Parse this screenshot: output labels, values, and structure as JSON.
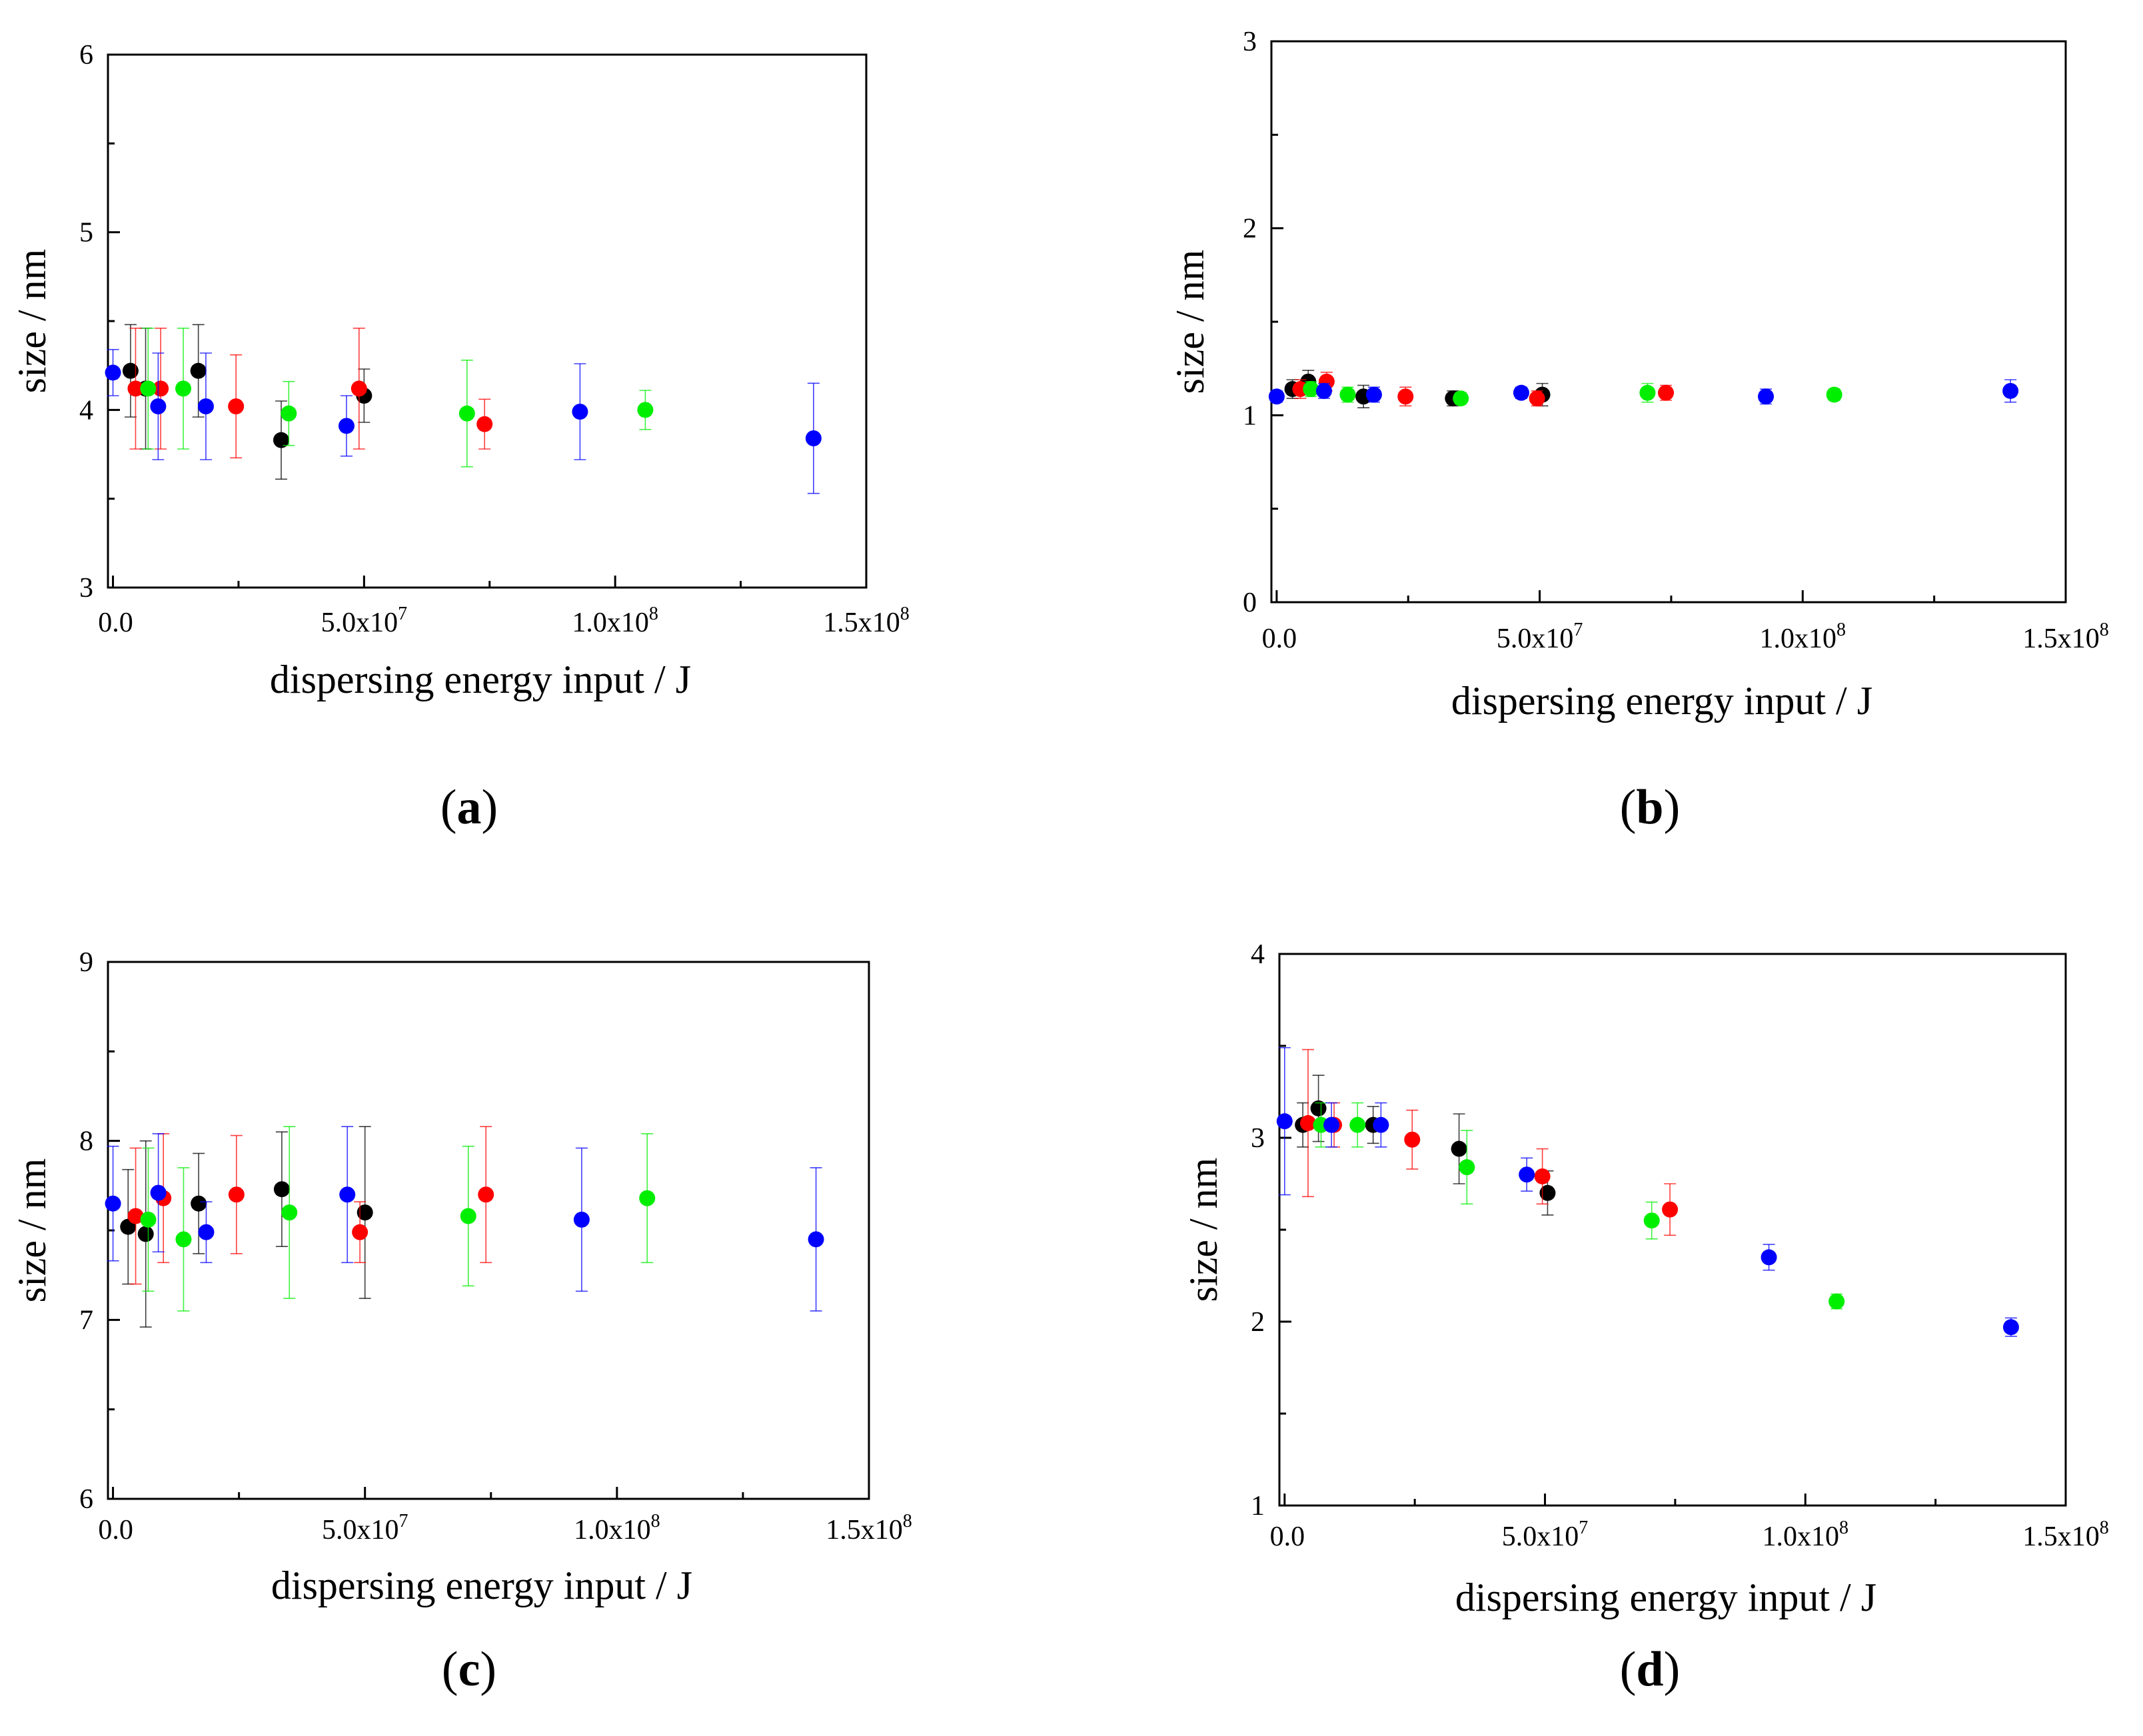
{
  "figure": {
    "panels": [
      "a",
      "b",
      "c",
      "d"
    ]
  },
  "chart_data": [
    {
      "id": "a",
      "type": "scatter",
      "panel_label": "a",
      "xlabel": "dispersing energy input / J",
      "ylabel": "size / nm",
      "xlim": [
        -1000000,
        150000000
      ],
      "ylim": [
        3,
        6
      ],
      "xticks": [
        {
          "value": 0,
          "text": "0.0",
          "sup": ""
        },
        {
          "value": 50000000,
          "text": "5.0x10",
          "sup": "7"
        },
        {
          "value": 100000000,
          "text": "1.0x10",
          "sup": "8"
        },
        {
          "value": 150000000,
          "text": "1.5x10",
          "sup": "8"
        }
      ],
      "yticks": [
        "3",
        "4",
        "5",
        "6"
      ],
      "grid": false,
      "series": [
        {
          "name": "black",
          "color": "#000000",
          "points": [
            {
              "x": 3500000,
              "y": 4.22,
              "err": 0.26
            },
            {
              "x": 17000000,
              "y": 4.22,
              "err": 0.26
            },
            {
              "x": 33500000,
              "y": 3.83,
              "err": 0.22
            },
            {
              "x": 50000000,
              "y": 4.08,
              "err": 0.15
            },
            {
              "x": 6500000,
              "y": 4.12,
              "err": 0.34
            }
          ]
        },
        {
          "name": "red",
          "color": "#ff0000",
          "points": [
            {
              "x": 4500000,
              "y": 4.12,
              "err": 0.34
            },
            {
              "x": 9500000,
              "y": 4.12,
              "err": 0.34
            },
            {
              "x": 24500000,
              "y": 4.02,
              "err": 0.29
            },
            {
              "x": 49000000,
              "y": 4.12,
              "err": 0.34
            },
            {
              "x": 74000000,
              "y": 3.92,
              "err": 0.14
            }
          ]
        },
        {
          "name": "green",
          "color": "#00ee00",
          "points": [
            {
              "x": 7000000,
              "y": 4.12,
              "err": 0.34
            },
            {
              "x": 14000000,
              "y": 4.12,
              "err": 0.34
            },
            {
              "x": 35000000,
              "y": 3.98,
              "err": 0.18
            },
            {
              "x": 70500000,
              "y": 3.98,
              "err": 0.3
            },
            {
              "x": 106000000,
              "y": 4.0,
              "err": 0.11
            }
          ]
        },
        {
          "name": "blue",
          "color": "#0000ff",
          "points": [
            {
              "x": 0,
              "y": 4.21,
              "err": 0.13
            },
            {
              "x": 9000000,
              "y": 4.02,
              "err": 0.3
            },
            {
              "x": 18500000,
              "y": 4.02,
              "err": 0.3
            },
            {
              "x": 46500000,
              "y": 3.91,
              "err": 0.17
            },
            {
              "x": 93000000,
              "y": 3.99,
              "err": 0.27
            },
            {
              "x": 139500000,
              "y": 3.84,
              "err": 0.31
            }
          ]
        }
      ]
    },
    {
      "id": "b",
      "type": "scatter",
      "panel_label": "b",
      "xlabel": "dispersing energy input / J",
      "ylabel": "size / nm",
      "xlim": [
        -1000000,
        150000000
      ],
      "ylim": [
        0,
        3
      ],
      "xticks": [
        {
          "value": 0,
          "text": "0.0",
          "sup": ""
        },
        {
          "value": 50000000,
          "text": "5.0x10",
          "sup": "7"
        },
        {
          "value": 100000000,
          "text": "1.0x10",
          "sup": "8"
        },
        {
          "value": 150000000,
          "text": "1.5x10",
          "sup": "8"
        }
      ],
      "yticks": [
        "0",
        "1",
        "2",
        "3"
      ],
      "grid": false,
      "series": [
        {
          "name": "black",
          "color": "#000000",
          "points": [
            {
              "x": 3000000,
              "y": 1.14,
              "err": 0.05
            },
            {
              "x": 6000000,
              "y": 1.18,
              "err": 0.06
            },
            {
              "x": 16500000,
              "y": 1.1,
              "err": 0.06
            },
            {
              "x": 33500000,
              "y": 1.09,
              "err": 0.04
            },
            {
              "x": 50500000,
              "y": 1.11,
              "err": 0.06
            }
          ]
        },
        {
          "name": "red",
          "color": "#ff0000",
          "points": [
            {
              "x": 4500000,
              "y": 1.14,
              "err": 0.05
            },
            {
              "x": 9500000,
              "y": 1.18,
              "err": 0.05
            },
            {
              "x": 24500000,
              "y": 1.1,
              "err": 0.05
            },
            {
              "x": 49500000,
              "y": 1.09,
              "err": 0.04
            },
            {
              "x": 74000000,
              "y": 1.12,
              "err": 0.04
            }
          ]
        },
        {
          "name": "green",
          "color": "#00ee00",
          "points": [
            {
              "x": 6500000,
              "y": 1.14,
              "err": 0.04
            },
            {
              "x": 13500000,
              "y": 1.11,
              "err": 0.04
            },
            {
              "x": 35000000,
              "y": 1.09,
              "err": 0.03
            },
            {
              "x": 70500000,
              "y": 1.12,
              "err": 0.05
            },
            {
              "x": 106000000,
              "y": 1.11,
              "err": 0.03
            }
          ]
        },
        {
          "name": "blue",
          "color": "#0000ff",
          "points": [
            {
              "x": 0,
              "y": 1.1,
              "err": 0.03
            },
            {
              "x": 9000000,
              "y": 1.13,
              "err": 0.04
            },
            {
              "x": 18500000,
              "y": 1.11,
              "err": 0.04
            },
            {
              "x": 46500000,
              "y": 1.12,
              "err": 0.03
            },
            {
              "x": 93000000,
              "y": 1.1,
              "err": 0.04
            },
            {
              "x": 139500000,
              "y": 1.13,
              "err": 0.06
            }
          ]
        }
      ]
    },
    {
      "id": "c",
      "type": "scatter",
      "panel_label": "c",
      "xlabel": "dispersing energy input / J",
      "ylabel": "size / nm",
      "xlim": [
        -1000000,
        150000000
      ],
      "ylim": [
        6,
        9
      ],
      "xticks": [
        {
          "value": 0,
          "text": "0.0",
          "sup": ""
        },
        {
          "value": 50000000,
          "text": "5.0x10",
          "sup": "7"
        },
        {
          "value": 100000000,
          "text": "1.0x10",
          "sup": "8"
        },
        {
          "value": 150000000,
          "text": "1.5x10",
          "sup": "8"
        }
      ],
      "yticks": [
        "6",
        "7",
        "8",
        "9"
      ],
      "grid": false,
      "series": [
        {
          "name": "black",
          "color": "#000000",
          "points": [
            {
              "x": 3000000,
              "y": 7.52,
              "err": 0.32
            },
            {
              "x": 6500000,
              "y": 7.48,
              "err": 0.52
            },
            {
              "x": 17000000,
              "y": 7.65,
              "err": 0.28
            },
            {
              "x": 33500000,
              "y": 7.73,
              "err": 0.32
            },
            {
              "x": 50000000,
              "y": 7.6,
              "err": 0.48
            }
          ]
        },
        {
          "name": "red",
          "color": "#ff0000",
          "points": [
            {
              "x": 4500000,
              "y": 7.58,
              "err": 0.38
            },
            {
              "x": 10000000,
              "y": 7.68,
              "err": 0.36
            },
            {
              "x": 24500000,
              "y": 7.7,
              "err": 0.33
            },
            {
              "x": 49000000,
              "y": 7.49,
              "err": 0.17
            },
            {
              "x": 74000000,
              "y": 7.7,
              "err": 0.38
            }
          ]
        },
        {
          "name": "green",
          "color": "#00ee00",
          "points": [
            {
              "x": 7000000,
              "y": 7.56,
              "err": 0.4
            },
            {
              "x": 14000000,
              "y": 7.45,
              "err": 0.4
            },
            {
              "x": 35000000,
              "y": 7.6,
              "err": 0.48
            },
            {
              "x": 70500000,
              "y": 7.58,
              "err": 0.39
            },
            {
              "x": 106000000,
              "y": 7.68,
              "err": 0.36
            }
          ]
        },
        {
          "name": "blue",
          "color": "#0000ff",
          "points": [
            {
              "x": 0,
              "y": 7.65,
              "err": 0.32
            },
            {
              "x": 9000000,
              "y": 7.71,
              "err": 0.33
            },
            {
              "x": 18500000,
              "y": 7.49,
              "err": 0.17
            },
            {
              "x": 46500000,
              "y": 7.7,
              "err": 0.38
            },
            {
              "x": 93000000,
              "y": 7.56,
              "err": 0.4
            },
            {
              "x": 139500000,
              "y": 7.45,
              "err": 0.4
            }
          ]
        }
      ]
    },
    {
      "id": "d",
      "type": "scatter",
      "panel_label": "d",
      "xlabel": "dispersing energy input / J",
      "ylabel": "size / nm",
      "xlim": [
        -1000000,
        150000000
      ],
      "ylim": [
        1,
        4
      ],
      "xticks": [
        {
          "value": 0,
          "text": "0.0",
          "sup": ""
        },
        {
          "value": 50000000,
          "text": "5.0x10",
          "sup": "7"
        },
        {
          "value": 100000000,
          "text": "1.0x10",
          "sup": "8"
        },
        {
          "value": 150000000,
          "text": "1.5x10",
          "sup": "8"
        }
      ],
      "yticks": [
        "1",
        "2",
        "3",
        "4"
      ],
      "grid": false,
      "series": [
        {
          "name": "black",
          "color": "#000000",
          "points": [
            {
              "x": 3500000,
              "y": 3.07,
              "err": 0.12
            },
            {
              "x": 6500000,
              "y": 3.16,
              "err": 0.18
            },
            {
              "x": 17000000,
              "y": 3.07,
              "err": 0.1
            },
            {
              "x": 33500000,
              "y": 2.94,
              "err": 0.19
            },
            {
              "x": 50500000,
              "y": 2.7,
              "err": 0.12
            }
          ]
        },
        {
          "name": "red",
          "color": "#ff0000",
          "points": [
            {
              "x": 4500000,
              "y": 3.08,
              "err": 0.4
            },
            {
              "x": 9500000,
              "y": 3.07,
              "err": 0.12
            },
            {
              "x": 24500000,
              "y": 2.99,
              "err": 0.16
            },
            {
              "x": 49500000,
              "y": 2.79,
              "err": 0.15
            },
            {
              "x": 74000000,
              "y": 2.61,
              "err": 0.14
            }
          ]
        },
        {
          "name": "green",
          "color": "#00ee00",
          "points": [
            {
              "x": 7000000,
              "y": 3.07,
              "err": 0.12
            },
            {
              "x": 14000000,
              "y": 3.07,
              "err": 0.12
            },
            {
              "x": 35000000,
              "y": 2.84,
              "err": 0.2
            },
            {
              "x": 70500000,
              "y": 2.55,
              "err": 0.1
            },
            {
              "x": 106000000,
              "y": 2.11,
              "err": 0.04
            }
          ]
        },
        {
          "name": "blue",
          "color": "#0000ff",
          "points": [
            {
              "x": 0,
              "y": 3.09,
              "err": 0.4
            },
            {
              "x": 9000000,
              "y": 3.07,
              "err": 0.12
            },
            {
              "x": 18500000,
              "y": 3.07,
              "err": 0.12
            },
            {
              "x": 46500000,
              "y": 2.8,
              "err": 0.09
            },
            {
              "x": 93000000,
              "y": 2.35,
              "err": 0.07
            },
            {
              "x": 139500000,
              "y": 1.97,
              "err": 0.05
            }
          ]
        }
      ]
    }
  ]
}
